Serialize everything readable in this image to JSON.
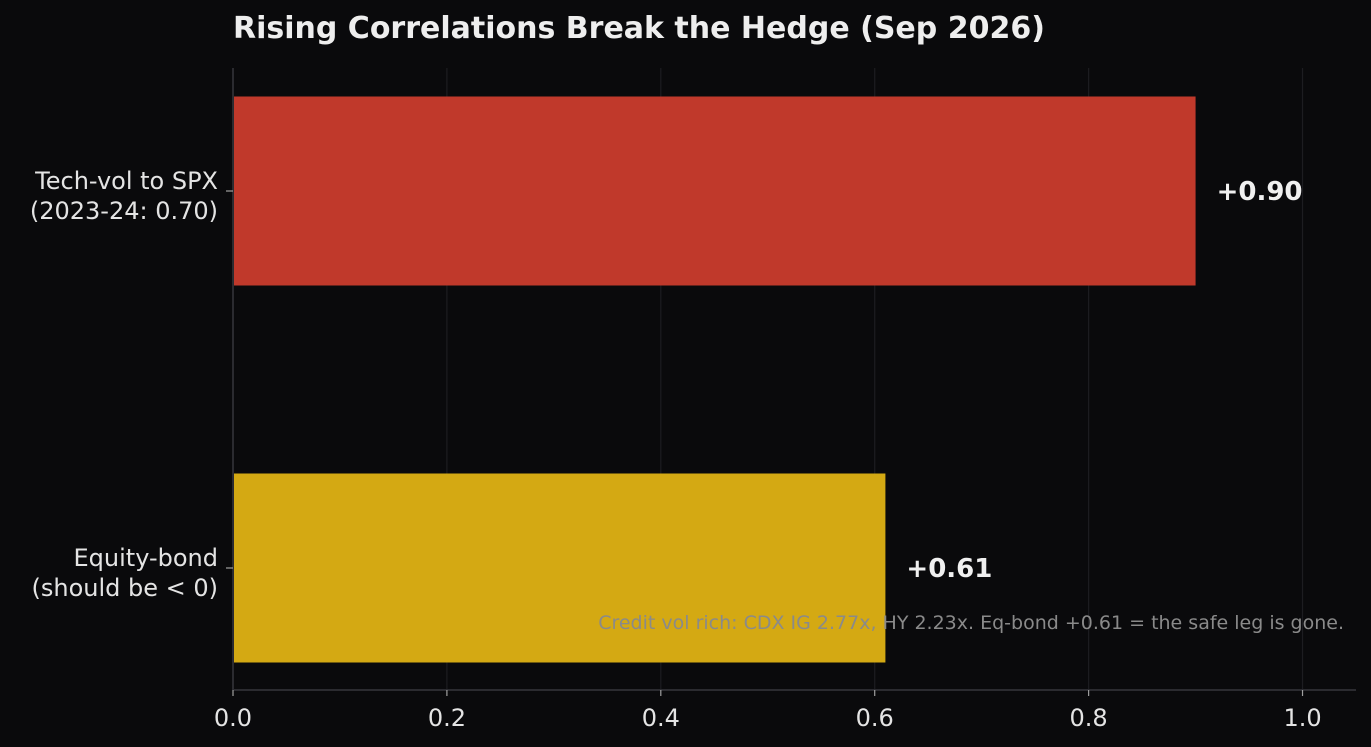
{
  "chart_data": {
    "type": "bar",
    "orientation": "horizontal",
    "title": "Rising Correlations Break the Hedge (Sep 2026)",
    "categories": [
      [
        "Tech-vol to SPX",
        "(2023-24: 0.70)"
      ],
      [
        "Equity-bond",
        "(should be < 0)"
      ]
    ],
    "values": [
      0.9,
      0.61
    ],
    "value_labels": [
      "+0.90",
      "+0.61"
    ],
    "colors": [
      "#c0392b",
      "#d4a913"
    ],
    "xlim": [
      0,
      1.05
    ],
    "xticks": [
      0.0,
      0.2,
      0.4,
      0.6,
      0.8,
      1.0
    ],
    "xtick_labels": [
      "0.0",
      "0.2",
      "0.4",
      "0.6",
      "0.8",
      "1.0"
    ],
    "grid": "vertical",
    "xlabel": "",
    "ylabel": "",
    "annotation": "Credit vol rich: CDX IG 2.77x, HY 2.23x. Eq-bond +0.61 = the safe leg is gone."
  }
}
